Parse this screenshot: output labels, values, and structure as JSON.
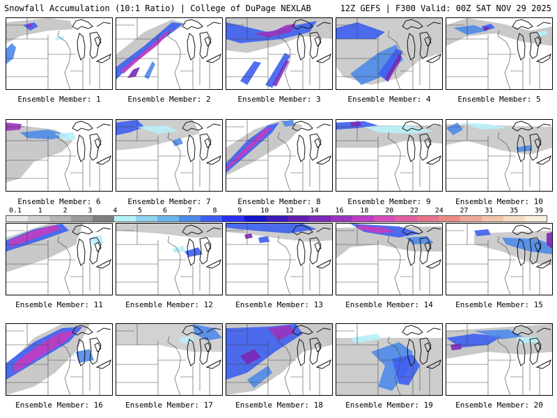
{
  "header": {
    "left": "Snowfall Accumulation (10:1 Ratio) | College of DuPage NEXLAB",
    "right": "12Z GEFS | F300 Valid: 00Z SAT NOV 29 2025"
  },
  "members": [
    {
      "label": "Ensemble Member: 1"
    },
    {
      "label": "Ensemble Member: 2"
    },
    {
      "label": "Ensemble Member: 3"
    },
    {
      "label": "Ensemble Member: 4"
    },
    {
      "label": "Ensemble Member: 5"
    },
    {
      "label": "Ensemble Member: 6"
    },
    {
      "label": "Ensemble Member: 7"
    },
    {
      "label": "Ensemble Member: 8"
    },
    {
      "label": "Ensemble Member: 9"
    },
    {
      "label": "Ensemble Member: 10"
    },
    {
      "label": "Ensemble Member: 11"
    },
    {
      "label": "Ensemble Member: 12"
    },
    {
      "label": "Ensemble Member: 13"
    },
    {
      "label": "Ensemble Member: 14"
    },
    {
      "label": "Ensemble Member: 15"
    },
    {
      "label": "Ensemble Member: 16"
    },
    {
      "label": "Ensemble Member: 17"
    },
    {
      "label": "Ensemble Member: 18"
    },
    {
      "label": "Ensemble Member: 19"
    },
    {
      "label": "Ensemble Member: 20"
    }
  ],
  "colorbar": {
    "labels": [
      "0.1",
      "1",
      "2",
      "3",
      "4",
      "5",
      "6",
      "7",
      "8",
      "9",
      "10",
      "12",
      "14",
      "16",
      "18",
      "20",
      "22",
      "24",
      "27",
      "31",
      "35",
      "39"
    ],
    "colors": [
      "#e6e6e6",
      "#cfcfcf",
      "#b5b5b5",
      "#9c9c9c",
      "#7f7f7f",
      "#b8f0f8",
      "#8fd3f0",
      "#6cb4ec",
      "#4e8ae8",
      "#3d5ff0",
      "#2b2ff2",
      "#1414c8",
      "#3a1ab8",
      "#5f1fb0",
      "#7a28b6",
      "#9b34bd",
      "#bd3ec3",
      "#d64fb8",
      "#e060a2",
      "#e4758c",
      "#e88c84",
      "#ecaa96",
      "#f0c4aa",
      "#f6dcc4",
      "#fbeede"
    ]
  }
}
